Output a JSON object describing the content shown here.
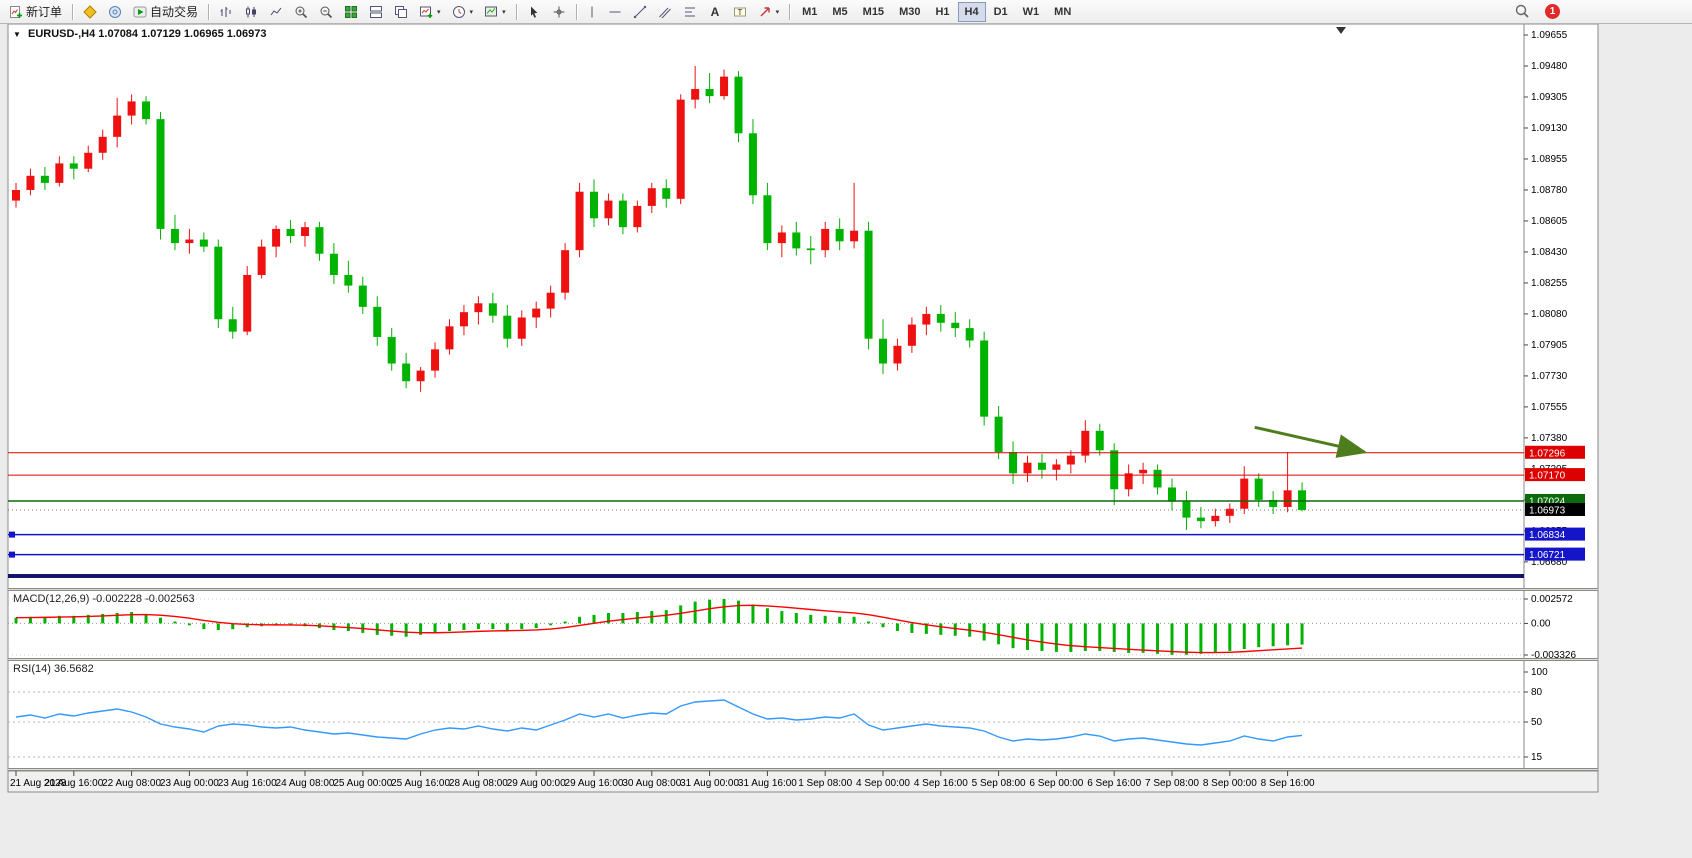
{
  "toolbar": {
    "new_order_label": "新订单",
    "autotrading_label": "自动交易",
    "caret_icon": "▾",
    "timeframes": [
      "M1",
      "M5",
      "M15",
      "M30",
      "H1",
      "H4",
      "D1",
      "W1",
      "MN"
    ],
    "active_timeframe": "H4",
    "notification_count": "1"
  },
  "chart": {
    "expander_icon": "▼",
    "symbol_period": "EURUSD-,H4",
    "ohlc": "1.07084 1.07129 1.06965 1.06973"
  },
  "indicators": {
    "macd": {
      "name": "MACD(12,26,9)",
      "values": "-0.002228 -0.002563"
    },
    "rsi": {
      "name": "RSI(14)",
      "value": "36.5682"
    }
  },
  "chart_data": {
    "type": "candlestick",
    "symbol": "EURUSD-",
    "timeframe": "H4",
    "current_ohlc": {
      "open": 1.07084,
      "high": 1.07129,
      "low": 1.06965,
      "close": 1.06973
    },
    "colors": {
      "up": "#ee1111",
      "down": "#00b300",
      "macd_hist": "#00b300",
      "macd_signal": "#ff0000",
      "rsi": "#3399ff"
    },
    "price_axis_labels": [
      "1.09655",
      "1.09480",
      "1.09305",
      "1.09130",
      "1.08955",
      "1.08780",
      "1.08605",
      "1.08430",
      "1.08255",
      "1.08080",
      "1.07905",
      "1.07730",
      "1.07555",
      "1.07380",
      "1.07205",
      "1.07030",
      "1.06855",
      "1.06680"
    ],
    "time_label_step": 4,
    "time_labels": [
      "21 Aug 2023",
      "21 Aug 16:00",
      "22 Aug 08:00",
      "23 Aug 00:00",
      "23 Aug 16:00",
      "24 Aug 08:00",
      "25 Aug 00:00",
      "25 Aug 16:00",
      "28 Aug 08:00",
      "29 Aug 00:00",
      "29 Aug 16:00",
      "30 Aug 08:00",
      "31 Aug 00:00",
      "31 Aug 16:00",
      "1 Sep 08:00",
      "4 Sep 00:00",
      "4 Sep 16:00",
      "5 Sep 08:00",
      "6 Sep 00:00",
      "6 Sep 16:00",
      "7 Sep 08:00",
      "8 Sep 00:00",
      "8 Sep 16:00"
    ],
    "candles": [
      [
        1.0872,
        1.0882,
        1.0868,
        1.0878
      ],
      [
        1.0878,
        1.089,
        1.0875,
        1.0886
      ],
      [
        1.0886,
        1.0891,
        1.0878,
        1.0882
      ],
      [
        1.0882,
        1.0897,
        1.088,
        1.0893
      ],
      [
        1.0893,
        1.0897,
        1.0884,
        1.089
      ],
      [
        1.089,
        1.0903,
        1.0888,
        1.0899
      ],
      [
        1.0899,
        1.0912,
        1.0895,
        1.0908
      ],
      [
        1.0908,
        1.093,
        1.0902,
        1.092
      ],
      [
        1.092,
        1.0932,
        1.0915,
        1.0928
      ],
      [
        1.0928,
        1.0931,
        1.0915,
        1.0918
      ],
      [
        1.0918,
        1.0922,
        1.085,
        1.0856
      ],
      [
        1.0856,
        1.0864,
        1.0844,
        1.0848
      ],
      [
        1.0848,
        1.0856,
        1.0842,
        1.085
      ],
      [
        1.085,
        1.0854,
        1.0843,
        1.0846
      ],
      [
        1.0846,
        1.085,
        1.08,
        1.0805
      ],
      [
        1.0805,
        1.0812,
        1.0794,
        1.0798
      ],
      [
        1.0798,
        1.0835,
        1.0796,
        1.083
      ],
      [
        1.083,
        1.085,
        1.0828,
        1.0846
      ],
      [
        1.0846,
        1.0858,
        1.084,
        1.0856
      ],
      [
        1.0856,
        1.0861,
        1.0848,
        1.0852
      ],
      [
        1.0852,
        1.086,
        1.0846,
        1.0857
      ],
      [
        1.0857,
        1.086,
        1.0838,
        1.0842
      ],
      [
        1.0842,
        1.0848,
        1.0825,
        1.083
      ],
      [
        1.083,
        1.0838,
        1.082,
        1.0824
      ],
      [
        1.0824,
        1.0829,
        1.0808,
        1.0812
      ],
      [
        1.0812,
        1.0818,
        1.079,
        1.0795
      ],
      [
        1.0795,
        1.08,
        1.0776,
        1.078
      ],
      [
        1.078,
        1.0786,
        1.0766,
        1.077
      ],
      [
        1.077,
        1.0778,
        1.0764,
        1.0776
      ],
      [
        1.0776,
        1.0792,
        1.0772,
        1.0788
      ],
      [
        1.0788,
        1.0805,
        1.0785,
        1.0801
      ],
      [
        1.0801,
        1.0813,
        1.0796,
        1.0809
      ],
      [
        1.0809,
        1.0818,
        1.0802,
        1.0814
      ],
      [
        1.0814,
        1.082,
        1.0803,
        1.0807
      ],
      [
        1.0807,
        1.0813,
        1.0789,
        1.0794
      ],
      [
        1.0794,
        1.081,
        1.079,
        1.0806
      ],
      [
        1.0806,
        1.0815,
        1.08,
        1.0811
      ],
      [
        1.0811,
        1.0824,
        1.0806,
        1.082
      ],
      [
        1.082,
        1.0848,
        1.0816,
        1.0844
      ],
      [
        1.0844,
        1.0882,
        1.084,
        1.0877
      ],
      [
        1.0877,
        1.0884,
        1.0857,
        1.0862
      ],
      [
        1.0862,
        1.0876,
        1.0858,
        1.0872
      ],
      [
        1.0872,
        1.0876,
        1.0853,
        1.0857
      ],
      [
        1.0857,
        1.0872,
        1.0854,
        1.0869
      ],
      [
        1.0869,
        1.0882,
        1.0865,
        1.0879
      ],
      [
        1.0879,
        1.0884,
        1.0868,
        1.0873
      ],
      [
        1.0873,
        1.0932,
        1.087,
        1.0929
      ],
      [
        1.0929,
        1.0948,
        1.0924,
        1.0935
      ],
      [
        1.0935,
        1.0944,
        1.0927,
        1.0931
      ],
      [
        1.0931,
        1.0946,
        1.0929,
        1.0942
      ],
      [
        1.0942,
        1.0945,
        1.0905,
        1.091
      ],
      [
        1.091,
        1.0918,
        1.087,
        1.0875
      ],
      [
        1.0875,
        1.0882,
        1.0844,
        1.0848
      ],
      [
        1.0848,
        1.0858,
        1.084,
        1.0854
      ],
      [
        1.0854,
        1.086,
        1.0841,
        1.0845
      ],
      [
        1.0845,
        1.0852,
        1.0836,
        1.0844
      ],
      [
        1.0844,
        1.086,
        1.084,
        1.0856
      ],
      [
        1.0856,
        1.0862,
        1.0844,
        1.0849
      ],
      [
        1.0849,
        1.0882,
        1.0845,
        1.0855
      ],
      [
        1.0855,
        1.086,
        1.0788,
        1.0794
      ],
      [
        1.0794,
        1.0805,
        1.0774,
        1.078
      ],
      [
        1.078,
        1.0794,
        1.0776,
        1.079
      ],
      [
        1.079,
        1.0806,
        1.0786,
        1.0802
      ],
      [
        1.0802,
        1.0812,
        1.0796,
        1.0808
      ],
      [
        1.0808,
        1.0813,
        1.0798,
        1.0803
      ],
      [
        1.0803,
        1.0809,
        1.0795,
        1.08
      ],
      [
        1.08,
        1.0805,
        1.0789,
        1.0793
      ],
      [
        1.0793,
        1.0798,
        1.0745,
        1.075
      ],
      [
        1.075,
        1.0756,
        1.0726,
        1.073
      ],
      [
        1.073,
        1.0736,
        1.0712,
        1.0718
      ],
      [
        1.0718,
        1.0728,
        1.0713,
        1.0724
      ],
      [
        1.0724,
        1.0729,
        1.0715,
        1.072
      ],
      [
        1.072,
        1.0726,
        1.0714,
        1.0723
      ],
      [
        1.0723,
        1.0731,
        1.0718,
        1.0728
      ],
      [
        1.0728,
        1.0748,
        1.0724,
        1.0742
      ],
      [
        1.0742,
        1.0746,
        1.0728,
        1.0731
      ],
      [
        1.0731,
        1.0735,
        1.07,
        1.0709
      ],
      [
        1.0709,
        1.0723,
        1.0705,
        1.0718
      ],
      [
        1.0718,
        1.0724,
        1.0712,
        1.072
      ],
      [
        1.072,
        1.0723,
        1.0706,
        1.071
      ],
      [
        1.071,
        1.0715,
        1.0697,
        1.0702
      ],
      [
        1.0702,
        1.0708,
        1.0686,
        1.0693
      ],
      [
        1.0693,
        1.0699,
        1.0687,
        1.0691
      ],
      [
        1.0691,
        1.0698,
        1.0688,
        1.0694
      ],
      [
        1.0694,
        1.0701,
        1.069,
        1.0698
      ],
      [
        1.0698,
        1.0722,
        1.0695,
        1.0715
      ],
      [
        1.0715,
        1.0718,
        1.0699,
        1.0703
      ],
      [
        1.0703,
        1.0708,
        1.0695,
        1.0699
      ],
      [
        1.0699,
        1.073,
        1.0696,
        1.07084
      ],
      [
        1.07084,
        1.07129,
        1.06965,
        1.06973
      ]
    ],
    "levels": [
      {
        "name": "resistance-line-upper",
        "price": 1.07296,
        "label": "1.07296",
        "color": "#dd0000",
        "width": 1
      },
      {
        "name": "resistance-line-lower",
        "price": 1.0717,
        "label": "1.07170",
        "color": "#dd0000",
        "width": 1
      },
      {
        "name": "support-line-green",
        "price": 1.07024,
        "label": "1.07024",
        "color": "#0b6b0b",
        "width": 1.5
      },
      {
        "name": "bid-price-line",
        "price": 1.06973,
        "label": "1.06973",
        "color": "#000000",
        "width": 0,
        "style": "dotted"
      },
      {
        "name": "support-line-blue-1",
        "price": 1.06834,
        "label": "1.06834",
        "color": "#1414c8",
        "width": 1.5,
        "anchor": true
      },
      {
        "name": "support-line-blue-2",
        "price": 1.06721,
        "label": "1.06721",
        "color": "#1414c8",
        "width": 1.5,
        "anchor": true
      },
      {
        "name": "support-zone-navy",
        "price": 1.066,
        "label": "",
        "color": "#15156e",
        "width": 4
      }
    ],
    "arrow": {
      "from_index": 86,
      "from_price": 1.0744,
      "to_index": 93.6,
      "to_price": 1.073,
      "color": "#4e7d1e"
    },
    "macd": {
      "label_main": -0.002228,
      "label_signal": -0.002563,
      "scale": [
        {
          "value": 0.002572,
          "label": "0.002572"
        },
        {
          "value": 0,
          "label": "0.00"
        },
        {
          "value": -0.003326,
          "label": "-0.003326"
        }
      ],
      "main": [
        0.0006,
        0.0007,
        0.0007,
        0.0008,
        0.0008,
        0.0009,
        0.001,
        0.0011,
        0.0012,
        0.001,
        0.0006,
        0.0002,
        -0.0002,
        -0.0006,
        -0.0007,
        -0.0006,
        -0.0004,
        -0.0003,
        -0.0002,
        -0.0002,
        -0.0003,
        -0.0005,
        -0.0007,
        -0.0008,
        -0.001,
        -0.0012,
        -0.0013,
        -0.0014,
        -0.0012,
        -0.001,
        -0.0008,
        -0.0007,
        -0.0006,
        -0.0006,
        -0.0007,
        -0.0006,
        -0.0005,
        -0.0002,
        0.0002,
        0.0007,
        0.0009,
        0.0011,
        0.0011,
        0.0012,
        0.0013,
        0.0014,
        0.0019,
        0.0023,
        0.0025,
        0.00257,
        0.0024,
        0.002,
        0.0016,
        0.0013,
        0.0011,
        0.0009,
        0.0008,
        0.0007,
        0.0007,
        0.0002,
        -0.0004,
        -0.0008,
        -0.001,
        -0.0011,
        -0.0012,
        -0.0013,
        -0.0014,
        -0.0018,
        -0.0022,
        -0.0026,
        -0.0028,
        -0.0029,
        -0.003,
        -0.003,
        -0.0029,
        -0.0029,
        -0.003,
        -0.0031,
        -0.0031,
        -0.0032,
        -0.0033,
        -0.0033,
        -0.0032,
        -0.0031,
        -0.0029,
        -0.0027,
        -0.0025,
        -0.0024,
        -0.0023,
        -0.002228
      ]
    },
    "rsi": {
      "current": 36.5682,
      "scale": [
        {
          "value": 100,
          "label": "100",
          "line": false
        },
        {
          "value": 80,
          "label": "80",
          "line": true
        },
        {
          "value": 50,
          "label": "50",
          "line": true
        },
        {
          "value": 15,
          "label": "15",
          "line": true
        }
      ],
      "values": [
        55,
        57,
        54,
        58,
        56,
        59,
        61,
        63,
        60,
        55,
        48,
        45,
        43,
        40,
        46,
        48,
        47,
        45,
        44,
        45,
        42,
        40,
        38,
        39,
        37,
        35,
        34,
        33,
        38,
        42,
        44,
        43,
        46,
        43,
        41,
        44,
        42,
        47,
        52,
        58,
        55,
        58,
        54,
        57,
        59,
        58,
        66,
        70,
        71,
        72,
        65,
        58,
        53,
        54,
        52,
        53,
        55,
        54,
        58,
        47,
        42,
        44,
        46,
        48,
        46,
        45,
        44,
        41,
        35,
        31,
        33,
        32,
        33,
        35,
        38,
        36,
        31,
        33,
        34,
        32,
        30,
        28,
        27,
        29,
        31,
        36,
        33,
        31,
        35,
        36.57
      ]
    }
  }
}
